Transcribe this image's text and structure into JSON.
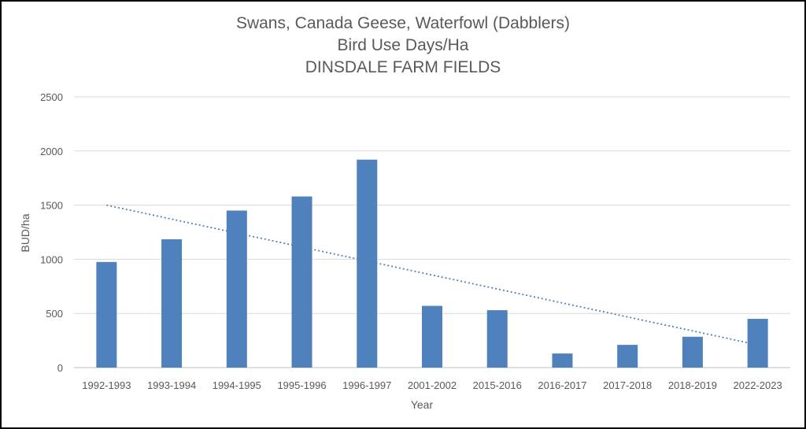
{
  "chart_data": {
    "type": "bar",
    "title_lines": [
      "Swans, Canada Geese, Waterfowl (Dabblers)",
      "Bird Use Days/Ha",
      "DINSDALE FARM FIELDS"
    ],
    "xlabel": "Year",
    "ylabel": "BUD/ha",
    "ylim": [
      0,
      2500
    ],
    "yticks": [
      "0",
      "500",
      "1000",
      "1500",
      "2000",
      "2500"
    ],
    "grid": true,
    "categories": [
      "1992-1993",
      "1993-1994",
      "1994-1995",
      "1995-1996",
      "1996-1997",
      "2001-2002",
      "2015-2016",
      "2016-2017",
      "2017-2018",
      "2018-2019",
      "2022-2023"
    ],
    "values": [
      975,
      1185,
      1450,
      1580,
      1920,
      570,
      530,
      130,
      210,
      285,
      450
    ],
    "trendline": {
      "type": "linear",
      "start": 1500,
      "end": 210
    },
    "colors": {
      "bar": "#4F81BD",
      "grid": "#D9D9D9",
      "text": "#595959"
    }
  }
}
